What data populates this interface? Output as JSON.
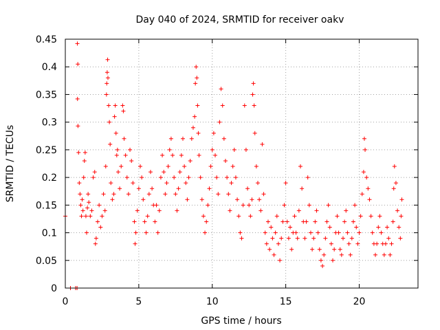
{
  "chart_data": {
    "type": "scatter",
    "title": "Day 040 of 2024, SRMTID for receiver oakv",
    "xlabel": "GPS time / hours",
    "ylabel": "SRMTID / TECUs",
    "xlim": [
      0,
      24
    ],
    "ylim": [
      0,
      0.45
    ],
    "xticks": [
      0,
      5,
      10,
      15,
      20
    ],
    "xtick_labels": [
      "0",
      "5",
      "10",
      "15",
      "20"
    ],
    "yticks": [
      0,
      0.05,
      0.1,
      0.15,
      0.2,
      0.25,
      0.3,
      0.35,
      0.4,
      0.45
    ],
    "ytick_labels": [
      "0",
      "0.05",
      "0.1",
      "0.15",
      "0.2",
      "0.25",
      "0.3",
      "0.35",
      "0.4",
      "0.45"
    ],
    "grid": true,
    "marker": "+",
    "color": "#ff0000",
    "series": [
      {
        "name": "SRMTID",
        "points": [
          [
            0.0,
            0.13
          ],
          [
            0.35,
            0.0
          ],
          [
            0.7,
            0.0
          ],
          [
            0.8,
            0.0
          ],
          [
            0.82,
            0.442
          ],
          [
            0.85,
            0.405
          ],
          [
            0.83,
            0.342
          ],
          [
            0.86,
            0.293
          ],
          [
            0.9,
            0.245
          ],
          [
            0.95,
            0.19
          ],
          [
            1.0,
            0.17
          ],
          [
            1.05,
            0.15
          ],
          [
            1.1,
            0.13
          ],
          [
            1.15,
            0.16
          ],
          [
            1.2,
            0.14
          ],
          [
            1.25,
            0.2
          ],
          [
            1.3,
            0.23
          ],
          [
            1.35,
            0.245
          ],
          [
            1.4,
            0.13
          ],
          [
            1.45,
            0.1
          ],
          [
            1.5,
            0.145
          ],
          [
            1.55,
            0.17
          ],
          [
            1.6,
            0.155
          ],
          [
            1.7,
            0.13
          ],
          [
            1.8,
            0.14
          ],
          [
            1.9,
            0.2
          ],
          [
            2.0,
            0.21
          ],
          [
            2.05,
            0.08
          ],
          [
            2.1,
            0.09
          ],
          [
            2.2,
            0.12
          ],
          [
            2.3,
            0.15
          ],
          [
            2.4,
            0.11
          ],
          [
            2.5,
            0.13
          ],
          [
            2.6,
            0.17
          ],
          [
            2.7,
            0.14
          ],
          [
            2.75,
            0.22
          ],
          [
            2.8,
            0.35
          ],
          [
            2.82,
            0.37
          ],
          [
            2.85,
            0.39
          ],
          [
            2.88,
            0.413
          ],
          [
            2.9,
            0.38
          ],
          [
            2.95,
            0.33
          ],
          [
            3.0,
            0.3
          ],
          [
            3.05,
            0.26
          ],
          [
            3.1,
            0.19
          ],
          [
            3.2,
            0.16
          ],
          [
            3.3,
            0.17
          ],
          [
            3.35,
            0.31
          ],
          [
            3.4,
            0.33
          ],
          [
            3.45,
            0.28
          ],
          [
            3.5,
            0.24
          ],
          [
            3.55,
            0.25
          ],
          [
            3.6,
            0.21
          ],
          [
            3.7,
            0.18
          ],
          [
            3.8,
            0.22
          ],
          [
            3.9,
            0.33
          ],
          [
            3.95,
            0.32
          ],
          [
            4.0,
            0.27
          ],
          [
            4.1,
            0.24
          ],
          [
            4.2,
            0.2
          ],
          [
            4.3,
            0.17
          ],
          [
            4.4,
            0.25
          ],
          [
            4.5,
            0.23
          ],
          [
            4.6,
            0.19
          ],
          [
            4.7,
            0.12
          ],
          [
            4.75,
            0.08
          ],
          [
            4.8,
            0.1
          ],
          [
            4.9,
            0.14
          ],
          [
            5.0,
            0.18
          ],
          [
            5.1,
            0.22
          ],
          [
            5.2,
            0.2
          ],
          [
            5.3,
            0.16
          ],
          [
            5.4,
            0.12
          ],
          [
            5.5,
            0.1
          ],
          [
            5.6,
            0.13
          ],
          [
            5.7,
            0.17
          ],
          [
            5.8,
            0.21
          ],
          [
            5.9,
            0.18
          ],
          [
            6.0,
            0.15
          ],
          [
            6.1,
            0.12
          ],
          [
            6.2,
            0.15
          ],
          [
            6.3,
            0.1
          ],
          [
            6.4,
            0.14
          ],
          [
            6.5,
            0.2
          ],
          [
            6.6,
            0.24
          ],
          [
            6.7,
            0.21
          ],
          [
            6.8,
            0.17
          ],
          [
            6.9,
            0.19
          ],
          [
            7.0,
            0.22
          ],
          [
            7.1,
            0.25
          ],
          [
            7.2,
            0.27
          ],
          [
            7.3,
            0.24
          ],
          [
            7.4,
            0.2
          ],
          [
            7.5,
            0.17
          ],
          [
            7.6,
            0.14
          ],
          [
            7.7,
            0.18
          ],
          [
            7.8,
            0.21
          ],
          [
            7.9,
            0.24
          ],
          [
            8.0,
            0.27
          ],
          [
            8.1,
            0.22
          ],
          [
            8.2,
            0.19
          ],
          [
            8.3,
            0.16
          ],
          [
            8.4,
            0.2
          ],
          [
            8.5,
            0.23
          ],
          [
            8.6,
            0.27
          ],
          [
            8.7,
            0.29
          ],
          [
            8.8,
            0.31
          ],
          [
            8.85,
            0.37
          ],
          [
            8.9,
            0.4
          ],
          [
            8.95,
            0.38
          ],
          [
            9.0,
            0.33
          ],
          [
            9.05,
            0.28
          ],
          [
            9.1,
            0.24
          ],
          [
            9.2,
            0.2
          ],
          [
            9.3,
            0.16
          ],
          [
            9.4,
            0.13
          ],
          [
            9.5,
            0.1
          ],
          [
            9.6,
            0.12
          ],
          [
            9.7,
            0.15
          ],
          [
            9.8,
            0.18
          ],
          [
            9.9,
            0.22
          ],
          [
            10.0,
            0.25
          ],
          [
            10.1,
            0.28
          ],
          [
            10.2,
            0.24
          ],
          [
            10.3,
            0.2
          ],
          [
            10.4,
            0.17
          ],
          [
            10.5,
            0.3
          ],
          [
            10.6,
            0.36
          ],
          [
            10.7,
            0.33
          ],
          [
            10.8,
            0.27
          ],
          [
            10.9,
            0.23
          ],
          [
            11.0,
            0.2
          ],
          [
            11.1,
            0.17
          ],
          [
            11.2,
            0.14
          ],
          [
            11.3,
            0.19
          ],
          [
            11.4,
            0.22
          ],
          [
            11.5,
            0.25
          ],
          [
            11.6,
            0.2
          ],
          [
            11.7,
            0.16
          ],
          [
            11.8,
            0.13
          ],
          [
            11.9,
            0.1
          ],
          [
            12.0,
            0.09
          ],
          [
            12.1,
            0.15
          ],
          [
            12.2,
            0.33
          ],
          [
            12.3,
            0.25
          ],
          [
            12.4,
            0.18
          ],
          [
            12.5,
            0.15
          ],
          [
            12.6,
            0.13
          ],
          [
            12.7,
            0.16
          ],
          [
            12.75,
            0.35
          ],
          [
            12.8,
            0.37
          ],
          [
            12.85,
            0.33
          ],
          [
            12.9,
            0.28
          ],
          [
            13.0,
            0.22
          ],
          [
            13.1,
            0.19
          ],
          [
            13.2,
            0.16
          ],
          [
            13.3,
            0.14
          ],
          [
            13.4,
            0.26
          ],
          [
            13.5,
            0.17
          ],
          [
            13.6,
            0.1
          ],
          [
            13.7,
            0.08
          ],
          [
            13.8,
            0.12
          ],
          [
            13.9,
            0.07
          ],
          [
            14.0,
            0.11
          ],
          [
            14.1,
            0.09
          ],
          [
            14.2,
            0.06
          ],
          [
            14.3,
            0.1
          ],
          [
            14.4,
            0.13
          ],
          [
            14.5,
            0.08
          ],
          [
            14.6,
            0.05
          ],
          [
            14.7,
            0.09
          ],
          [
            14.8,
            0.12
          ],
          [
            14.9,
            0.15
          ],
          [
            15.0,
            0.19
          ],
          [
            15.1,
            0.12
          ],
          [
            15.2,
            0.09
          ],
          [
            15.3,
            0.11
          ],
          [
            15.4,
            0.07
          ],
          [
            15.5,
            0.1
          ],
          [
            15.6,
            0.13
          ],
          [
            15.7,
            0.1
          ],
          [
            15.8,
            0.09
          ],
          [
            15.9,
            0.14
          ],
          [
            16.0,
            0.22
          ],
          [
            16.1,
            0.18
          ],
          [
            16.2,
            0.12
          ],
          [
            16.3,
            0.09
          ],
          [
            16.4,
            0.12
          ],
          [
            16.5,
            0.2
          ],
          [
            16.6,
            0.15
          ],
          [
            16.7,
            0.1
          ],
          [
            16.8,
            0.07
          ],
          [
            16.9,
            0.09
          ],
          [
            17.0,
            0.12
          ],
          [
            17.1,
            0.14
          ],
          [
            17.2,
            0.1
          ],
          [
            17.3,
            0.07
          ],
          [
            17.4,
            0.05
          ],
          [
            17.5,
            0.04
          ],
          [
            17.6,
            0.06
          ],
          [
            17.7,
            0.09
          ],
          [
            17.8,
            0.12
          ],
          [
            17.9,
            0.15
          ],
          [
            18.0,
            0.11
          ],
          [
            18.1,
            0.08
          ],
          [
            18.2,
            0.05
          ],
          [
            18.3,
            0.07
          ],
          [
            18.4,
            0.1
          ],
          [
            18.5,
            0.13
          ],
          [
            18.6,
            0.1
          ],
          [
            18.7,
            0.07
          ],
          [
            18.8,
            0.06
          ],
          [
            18.9,
            0.09
          ],
          [
            19.0,
            0.12
          ],
          [
            19.1,
            0.14
          ],
          [
            19.2,
            0.1
          ],
          [
            19.3,
            0.08
          ],
          [
            19.4,
            0.06
          ],
          [
            19.5,
            0.09
          ],
          [
            19.6,
            0.12
          ],
          [
            19.7,
            0.15
          ],
          [
            19.8,
            0.11
          ],
          [
            19.9,
            0.08
          ],
          [
            20.0,
            0.1
          ],
          [
            20.1,
            0.13
          ],
          [
            20.2,
            0.17
          ],
          [
            20.3,
            0.21
          ],
          [
            20.35,
            0.27
          ],
          [
            20.4,
            0.25
          ],
          [
            20.5,
            0.2
          ],
          [
            20.6,
            0.18
          ],
          [
            20.7,
            0.16
          ],
          [
            20.8,
            0.13
          ],
          [
            20.9,
            0.1
          ],
          [
            21.0,
            0.08
          ],
          [
            21.1,
            0.06
          ],
          [
            21.2,
            0.08
          ],
          [
            21.3,
            0.11
          ],
          [
            21.4,
            0.13
          ],
          [
            21.5,
            0.1
          ],
          [
            21.6,
            0.08
          ],
          [
            21.7,
            0.06
          ],
          [
            21.8,
            0.08
          ],
          [
            21.9,
            0.11
          ],
          [
            22.0,
            0.09
          ],
          [
            22.1,
            0.06
          ],
          [
            22.2,
            0.08
          ],
          [
            22.3,
            0.12
          ],
          [
            22.35,
            0.18
          ],
          [
            22.4,
            0.22
          ],
          [
            22.5,
            0.19
          ],
          [
            22.6,
            0.14
          ],
          [
            22.7,
            0.11
          ],
          [
            22.8,
            0.09
          ],
          [
            22.85,
            0.13
          ],
          [
            22.9,
            0.16
          ]
        ]
      }
    ]
  }
}
